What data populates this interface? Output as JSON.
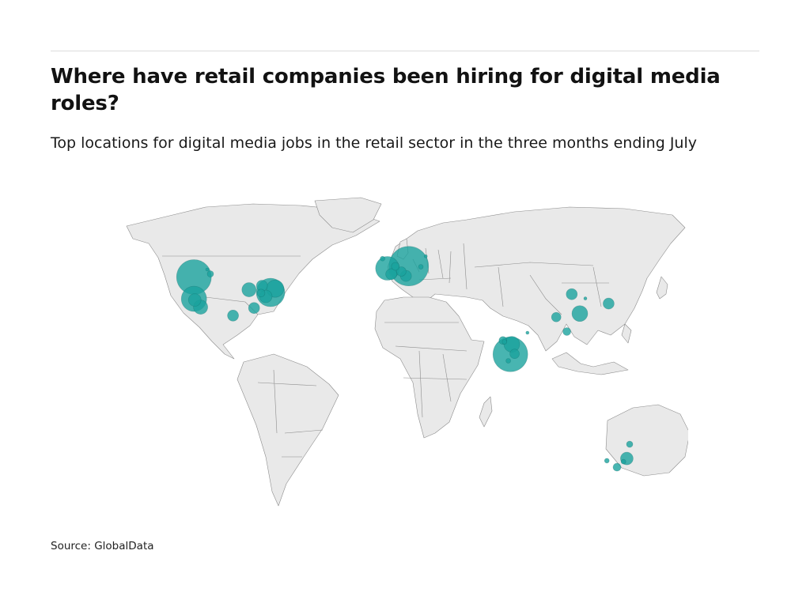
{
  "header": {
    "title": "Where have retail companies been hiring for digital media roles?",
    "subtitle": "Top locations for digital media jobs in the retail sector in the three months ending July"
  },
  "footer": {
    "source": "Source: GlobalData"
  },
  "colors": {
    "bubble": "#1aa39e",
    "land": "#e9e9e9",
    "border": "#8c8c8c",
    "rule": "#dcdcdc"
  },
  "map": {
    "projection": "equirectangular",
    "bubbles": [
      {
        "lon": -122.4,
        "lat": 47.6,
        "size": 22
      },
      {
        "lon": -122.4,
        "lat": 37.8,
        "size": 16
      },
      {
        "lon": -118.2,
        "lat": 34.1,
        "size": 9
      },
      {
        "lon": -121.9,
        "lat": 37.3,
        "size": 8
      },
      {
        "lon": -112.0,
        "lat": 49.0,
        "size": 4
      },
      {
        "lon": -114.0,
        "lat": 51.0,
        "size": 2
      },
      {
        "lon": -97.7,
        "lat": 30.3,
        "size": 7
      },
      {
        "lon": -87.6,
        "lat": 41.9,
        "size": 9
      },
      {
        "lon": -84.4,
        "lat": 33.7,
        "size": 7
      },
      {
        "lon": -74.0,
        "lat": 40.7,
        "size": 18
      },
      {
        "lon": -71.1,
        "lat": 42.4,
        "size": 11
      },
      {
        "lon": -77.0,
        "lat": 38.9,
        "size": 8
      },
      {
        "lon": -79.4,
        "lat": 43.7,
        "size": 7
      },
      {
        "lon": -80.0,
        "lat": 40.4,
        "size": 5
      },
      {
        "lon": -0.1,
        "lat": 51.5,
        "size": 15
      },
      {
        "lon": -3.2,
        "lat": 55.9,
        "size": 3
      },
      {
        "lon": 2.3,
        "lat": 48.9,
        "size": 7
      },
      {
        "lon": 4.9,
        "lat": 52.4,
        "size": 5
      },
      {
        "lon": 13.4,
        "lat": 52.5,
        "size": 25
      },
      {
        "lon": 8.7,
        "lat": 50.1,
        "size": 6
      },
      {
        "lon": 11.6,
        "lat": 48.1,
        "size": 7
      },
      {
        "lon": 21.0,
        "lat": 52.2,
        "size": 3
      },
      {
        "lon": 24.1,
        "lat": 56.9,
        "size": 2
      },
      {
        "lon": 72.9,
        "lat": 19.1,
        "size": 5
      },
      {
        "lon": 77.6,
        "lat": 12.9,
        "size": 22
      },
      {
        "lon": 78.5,
        "lat": 17.4,
        "size": 10
      },
      {
        "lon": 80.3,
        "lat": 13.1,
        "size": 6
      },
      {
        "lon": 73.9,
        "lat": 18.5,
        "size": 3
      },
      {
        "lon": 76.3,
        "lat": 10.0,
        "size": 3
      },
      {
        "lon": 88.4,
        "lat": 22.6,
        "size": 2
      },
      {
        "lon": 106.6,
        "lat": 29.6,
        "size": 6
      },
      {
        "lon": 116.4,
        "lat": 39.9,
        "size": 7
      },
      {
        "lon": 121.5,
        "lat": 31.2,
        "size": 10
      },
      {
        "lon": 113.3,
        "lat": 23.1,
        "size": 5
      },
      {
        "lon": 125.0,
        "lat": 38.0,
        "size": 2
      },
      {
        "lon": 139.7,
        "lat": 35.7,
        "size": 7
      },
      {
        "lon": 151.2,
        "lat": -33.9,
        "size": 8
      },
      {
        "lon": 145.0,
        "lat": -37.8,
        "size": 5
      },
      {
        "lon": 153.0,
        "lat": -27.5,
        "size": 4
      },
      {
        "lon": 138.6,
        "lat": -34.9,
        "size": 3
      },
      {
        "lon": 149.1,
        "lat": -35.3,
        "size": 3
      }
    ]
  }
}
